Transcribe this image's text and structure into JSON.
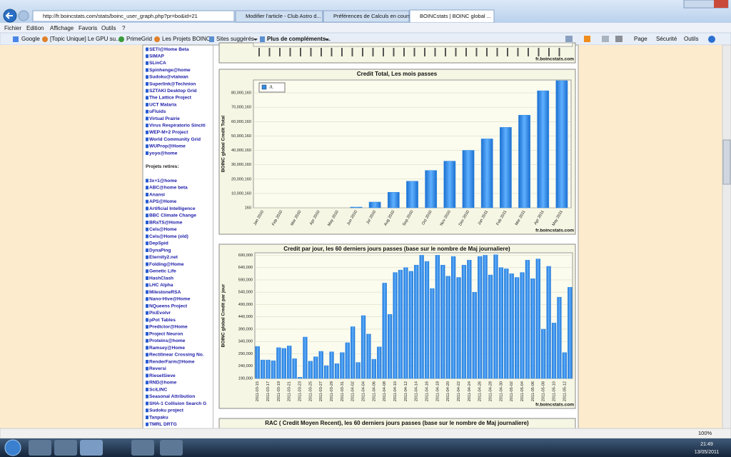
{
  "browser": {
    "address": "http://fr.boincstats.com/stats/boinc_user_graph.php?pr=bo&id=21",
    "tabs": [
      "Modifier l'article - Club Astro d...",
      "Préférences de Calculs en cours",
      "BOINCstats | BOINC global ..."
    ],
    "menu": [
      "Fichier",
      "Edition",
      "Affichage",
      "Favoris",
      "Outils",
      "?"
    ],
    "favorites": [
      "Google",
      "[Topic Unique] Le GPU su...",
      "PrimeGrid",
      "Les Projets BOINC",
      "Sites suggérés",
      "Plus de compléments..."
    ],
    "commands": [
      "Page",
      "Sécurité",
      "Outils"
    ],
    "zoom": "100%"
  },
  "sidebar": {
    "active": [
      "SETI@Home Beta",
      "SIMAP",
      "SLinCA",
      "Spinhenge@home",
      "Sudoku@vtaiwan",
      "Superlink@Technion",
      "SZTAKI Desktop Grid",
      "The Lattice Project",
      "UCT Malaria",
      "uFluids",
      "Virtual Prairie",
      "Virus Respiratorio Sinciti",
      "WEP-M+2 Project",
      "World Community Grid",
      "WUProp@Home",
      "yoyo@home"
    ],
    "retired_heading": "Projets retires:",
    "retired": [
      "3x+1@home",
      "ABC@home beta",
      "Anansi",
      "APS@Home",
      "Artificial Intelligence",
      "BBC Climate Change",
      "BRaTS@Home",
      "Cels@Home",
      "Cels@Home (old)",
      "DepSpid",
      "DynaPing",
      "Eternity2.net",
      "Folding@Home",
      "Genetic Life",
      "HashClash",
      "LHC Alpha",
      "MilestoneRSA",
      "Nano-Hive@Home",
      "NQueens Project",
      "PicEvolvr",
      "pPot Tables",
      "Predictor@Home",
      "Project Neuron",
      "Proteins@home",
      "Ramsey@Home",
      "Rectilinear Crossing No.",
      "RenderFarm@Home",
      "Reversi",
      "RieselSieve",
      "RND@home",
      "SciLINC",
      "Seasonal Attribution",
      "SHA-1 Collision Search G",
      "Sudoku project",
      "Tanpaku",
      "TMRL DRTG"
    ]
  },
  "top_chart": {
    "source": "fr.boincstats.com"
  },
  "charts": [
    {
      "type": "bar",
      "title": "Credit Total, Les mois passes",
      "y_label": "BOINC global Credit Total",
      "source": "fr.boincstats.com",
      "categories": [
        "Jan 2010",
        "Feb 2010",
        "Mar 2010",
        "Apr 2010",
        "May 2010",
        "Jun 2010",
        "Jul 2010",
        "Aug 2010",
        "Sep 2010",
        "Oct 2010",
        "Nov 2010",
        "Dec 2010",
        "Jan 2011",
        "Feb 2011",
        "Mar 2011",
        "Apr 2011",
        "May 2011"
      ],
      "series": [
        {
          "name": "JL",
          "color": "#2f8ae6",
          "values": [
            160,
            160,
            160,
            160,
            160,
            500000,
            4000000,
            10800000,
            18500000,
            26000000,
            32500000,
            40000000,
            48000000,
            56000000,
            64500000,
            81500000,
            88500000
          ]
        }
      ],
      "ylim": [
        160,
        89000160
      ],
      "yticks": [
        160,
        {
          "value": 10000160,
          "label": "10,000,160"
        },
        {
          "value": 20000160,
          "label": "20,000,160"
        },
        {
          "value": 30000160,
          "label": "30,000,160"
        },
        {
          "value": 40000160,
          "label": "40,000,160"
        },
        {
          "value": 50000160,
          "label": "50,000,160"
        },
        {
          "value": 60000160,
          "label": "60,000,160"
        },
        {
          "value": 70000160,
          "label": "70,000,160"
        },
        {
          "value": 80000160,
          "label": "80,000,160"
        }
      ],
      "grid": true,
      "legend": "top-left"
    },
    {
      "type": "bar",
      "title": "Credit par jour, les 60 derniers jours passes (base sur le nombre de Maj journaliere)",
      "y_label": "BOINC global Credit par jour",
      "source": "fr.boincstats.com",
      "categories": [
        "2011-03-15",
        null,
        "2011-03-17",
        null,
        "2011-03-19",
        null,
        "2011-03-21",
        null,
        "2011-03-23",
        null,
        "2011-03-25",
        null,
        "2011-03-27",
        null,
        "2011-03-29",
        null,
        "2011-03-31",
        null,
        "2011-04-02",
        null,
        "2011-04-04",
        null,
        "2011-04-06",
        null,
        "2011-04-08",
        null,
        "2011-04-10",
        null,
        "2011-04-12",
        null,
        "2011-04-14",
        null,
        "2011-04-16",
        null,
        "2011-04-18",
        null,
        "2011-04-20",
        null,
        "2011-04-22",
        null,
        "2011-04-24",
        null,
        "2011-04-26",
        null,
        "2011-04-28",
        null,
        "2011-04-30",
        null,
        "2011-05-02",
        null,
        "2011-05-04",
        null,
        "2011-05-06",
        null,
        "2011-05-08",
        null,
        "2011-05-10",
        null,
        "2011-05-12",
        null
      ],
      "values": [
        320000,
        265000,
        265000,
        262000,
        315000,
        312000,
        322000,
        270000,
        195000,
        358000,
        260000,
        278000,
        300000,
        242000,
        298000,
        250000,
        295000,
        335000,
        400000,
        255000,
        445000,
        370000,
        268000,
        318000,
        577000,
        450000,
        620000,
        630000,
        640000,
        625000,
        650000,
        690000,
        665000,
        555000,
        690000,
        650000,
        605000,
        685000,
        600000,
        650000,
        670000,
        540000,
        685000,
        690000,
        610000,
        692000,
        640000,
        635000,
        615000,
        600000,
        620000,
        670000,
        595000,
        675000,
        390000,
        645000,
        415000,
        520000,
        295000,
        560000
      ],
      "color": "#2f8ae6",
      "ylim": [
        190000,
        700000
      ],
      "yticks": [
        {
          "value": 190000,
          "label": "190,000"
        },
        {
          "value": 240000,
          "label": "240,000"
        },
        {
          "value": 290000,
          "label": "290,000"
        },
        {
          "value": 340000,
          "label": "340,000"
        },
        {
          "value": 390000,
          "label": "390,000"
        },
        {
          "value": 440000,
          "label": "440,000"
        },
        {
          "value": 490000,
          "label": "490,000"
        },
        {
          "value": 540000,
          "label": "540,000"
        },
        {
          "value": 590000,
          "label": "590,000"
        },
        {
          "value": 640000,
          "label": "640,000"
        },
        {
          "value": 690000,
          "label": "690,000"
        }
      ],
      "grid": true
    }
  ],
  "bottom_chart": {
    "title": "RAC ( Credit Moyen Recent), les 60 derniers jours passes (base sur le nombre de Maj journaliere)"
  },
  "taskbar": {
    "time": "21:49",
    "date": "13/05/2011"
  }
}
